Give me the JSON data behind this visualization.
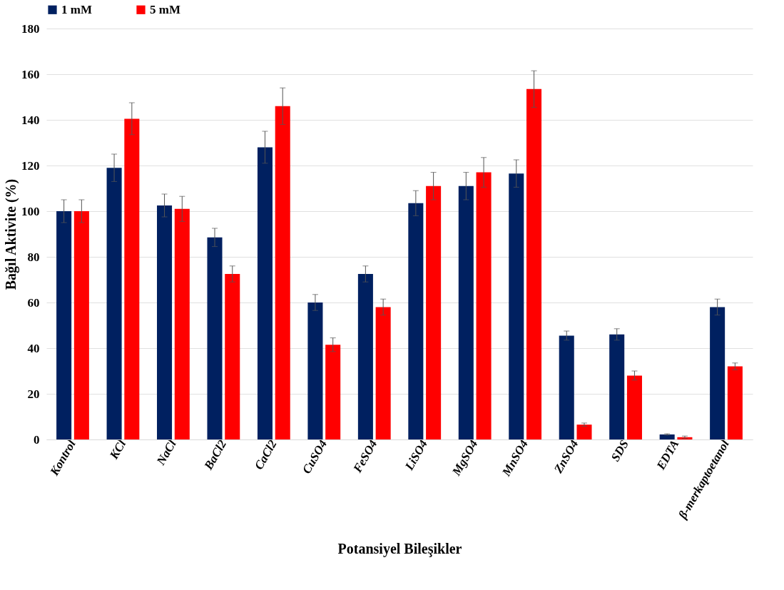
{
  "chart_data": {
    "type": "bar",
    "xlabel": "Potansiyel Bileşikler",
    "ylabel": "Bağıl Aktivite (%)",
    "categories": [
      "Kontrol",
      "KCl",
      "NaCl",
      "BaCl2",
      "CaCl2",
      "CuSO4",
      "FeSO4",
      "LiSO4",
      "MgSO4",
      "MnSO4",
      "ZnSO4",
      "SDS",
      "EDTA",
      "β-merkaptoetanol"
    ],
    "series": [
      {
        "name": "1 mM",
        "color": "#002060",
        "values": [
          100,
          119,
          102.5,
          88.5,
          128,
          60,
          72.5,
          103.5,
          111,
          116.5,
          45.5,
          46,
          2.2,
          58
        ],
        "errors": [
          5,
          6,
          5,
          4,
          7,
          3.5,
          3.5,
          5.5,
          6,
          6,
          2,
          2.5,
          0.3,
          3.5
        ]
      },
      {
        "name": "5 mM",
        "color": "#ff0000",
        "values": [
          100,
          140.5,
          101,
          72.5,
          146,
          41.5,
          58,
          111,
          117,
          153.5,
          6.5,
          28,
          1,
          32
        ],
        "errors": [
          5,
          7,
          5.5,
          3.5,
          8,
          3,
          3.5,
          6,
          6.5,
          8,
          0.7,
          2,
          0.5,
          1.5
        ]
      }
    ],
    "ylim": [
      0,
      180
    ],
    "yticks": [
      0,
      20,
      40,
      60,
      80,
      100,
      120,
      140,
      160,
      180
    ],
    "grid": "y",
    "legend": "top"
  }
}
